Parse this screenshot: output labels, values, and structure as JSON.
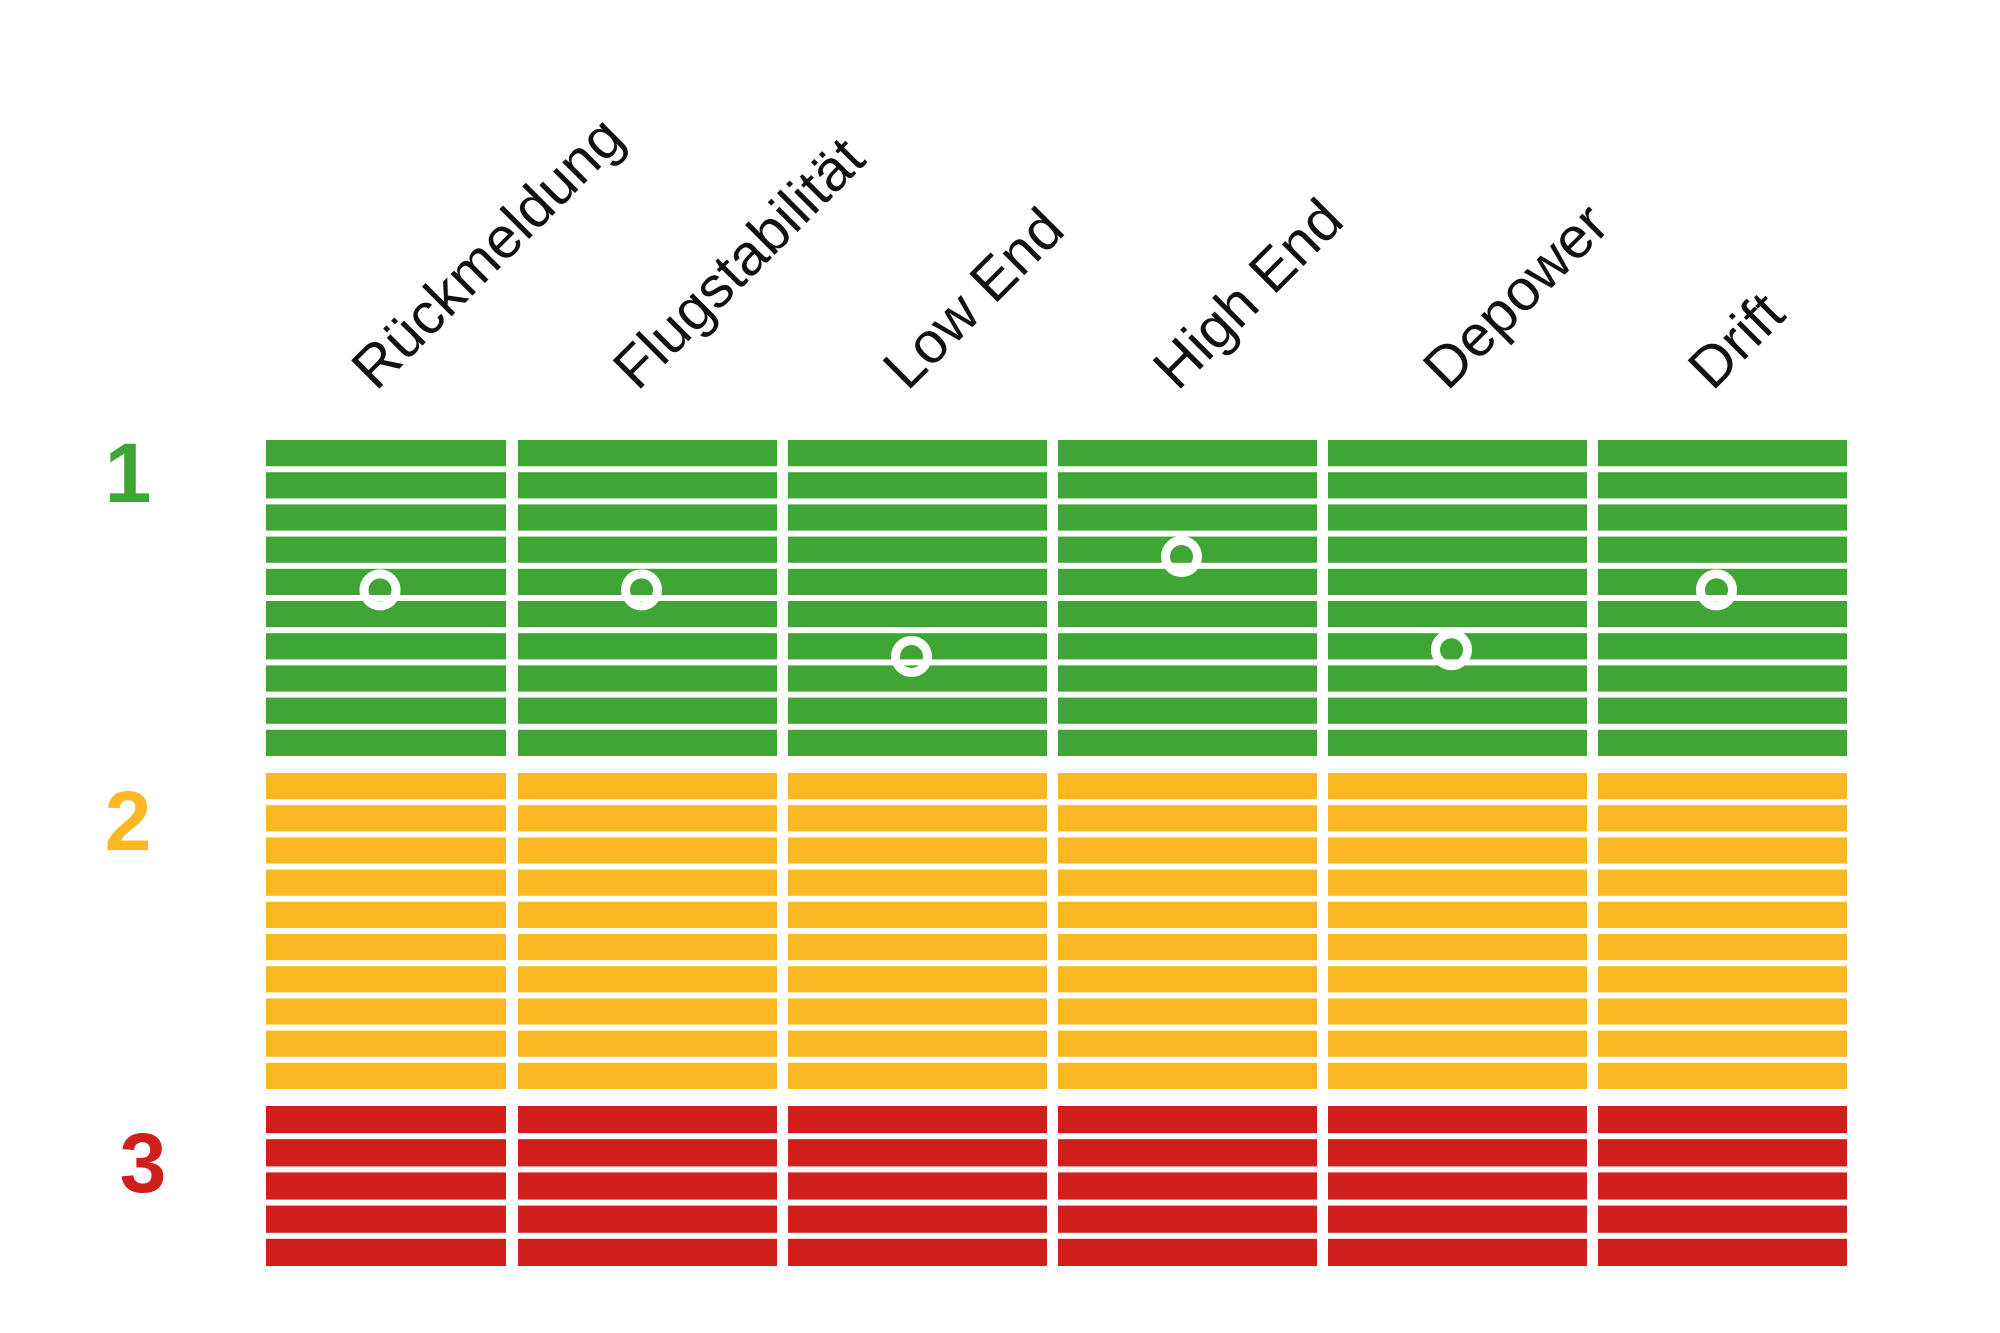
{
  "chart_data": {
    "type": "heatmap",
    "title": "",
    "categories": [
      "Rückmeldung",
      "Flugstabilität",
      "Low End",
      "High End",
      "Depower",
      "Drift"
    ],
    "zones": [
      {
        "label": "1",
        "color": "#3fa535",
        "stripes": 10
      },
      {
        "label": "2",
        "color": "#fbb823",
        "stripes": 10
      },
      {
        "label": "3",
        "color": "#d01f1a",
        "stripes": 5
      }
    ],
    "scale": {
      "min": 1,
      "max": 3,
      "direction": "1 at top"
    },
    "series": [
      {
        "values": [
          1.45,
          1.45,
          1.65,
          1.35,
          1.63,
          1.45
        ]
      }
    ],
    "marker_color": "#ffffff",
    "grid": true,
    "legend": "none"
  }
}
